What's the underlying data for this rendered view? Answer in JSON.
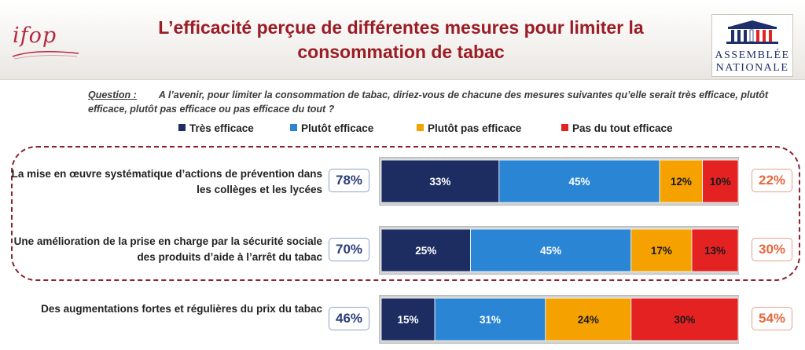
{
  "header": {
    "logo_text": "ifop",
    "title": "L’efficacité perçue de différentes mesures pour limiter la consommation de tabac",
    "partner_logo_line1": "ASSEMBLÉE",
    "partner_logo_line2": "NATIONALE"
  },
  "question": {
    "label": "Question :",
    "text": "A l’avenir, pour limiter la consommation de tabac, diriez-vous de chacune des mesures suivantes qu’elle serait très efficace, plutôt efficace, plutôt pas efficace ou pas efficace du tout ?"
  },
  "colors": {
    "tres_efficace": "#1d2d62",
    "plutot_efficace": "#2a85d4",
    "plutot_pas_efficace": "#f5a100",
    "pas_du_tout_efficace": "#e52222",
    "title": "#9b1c24",
    "dashed_box": "#8c2130",
    "left_total": "#2a3e7a",
    "right_total": "#e7683a"
  },
  "chart_data": {
    "type": "bar",
    "orientation": "horizontal",
    "stacked": true,
    "unit": "%",
    "legend_position": "top",
    "series": [
      {
        "name": "Très efficace",
        "values": [
          33,
          25,
          15
        ]
      },
      {
        "name": "Plutôt efficace",
        "values": [
          45,
          45,
          31
        ]
      },
      {
        "name": "Plutôt pas efficace",
        "values": [
          12,
          17,
          24
        ]
      },
      {
        "name": "Pas du tout efficace",
        "values": [
          10,
          13,
          30
        ]
      }
    ],
    "rows": [
      {
        "label": "La mise en œuvre systématique d’actions de prévention dans les collèges et les lycées",
        "total_efficace": "78%",
        "total_pas_efficace": "22%",
        "segment_labels": [
          "33%",
          "45%",
          "12%",
          "10%"
        ]
      },
      {
        "label": "Une amélioration de la prise en charge par la sécurité sociale des produits d’aide à l’arrêt du tabac",
        "total_efficace": "70%",
        "total_pas_efficace": "30%",
        "segment_labels": [
          "25%",
          "45%",
          "17%",
          "13%"
        ]
      },
      {
        "label": "Des augmentations fortes et régulières du prix du tabac",
        "total_efficace": "46%",
        "total_pas_efficace": "54%",
        "segment_labels": [
          "15%",
          "31%",
          "24%",
          "30%"
        ]
      }
    ]
  }
}
